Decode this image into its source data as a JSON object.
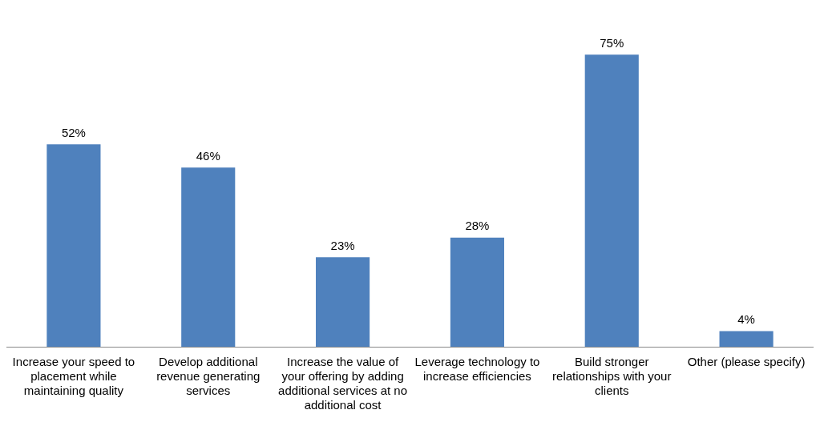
{
  "chart_data": {
    "type": "bar",
    "categories": [
      "Increase your speed to placement while maintaining quality",
      "Develop additional revenue generating services",
      "Increase the value of your offering by adding additional services at no additional cost",
      "Leverage technology to increase efficiencies",
      "Build stronger relationships with your clients",
      "Other (please specify)"
    ],
    "values": [
      52,
      46,
      23,
      28,
      75,
      4
    ],
    "value_labels": [
      "52%",
      "46%",
      "23%",
      "28%",
      "75%",
      "4%"
    ],
    "color": "#4f81bd",
    "grid": false,
    "legend": false
  }
}
